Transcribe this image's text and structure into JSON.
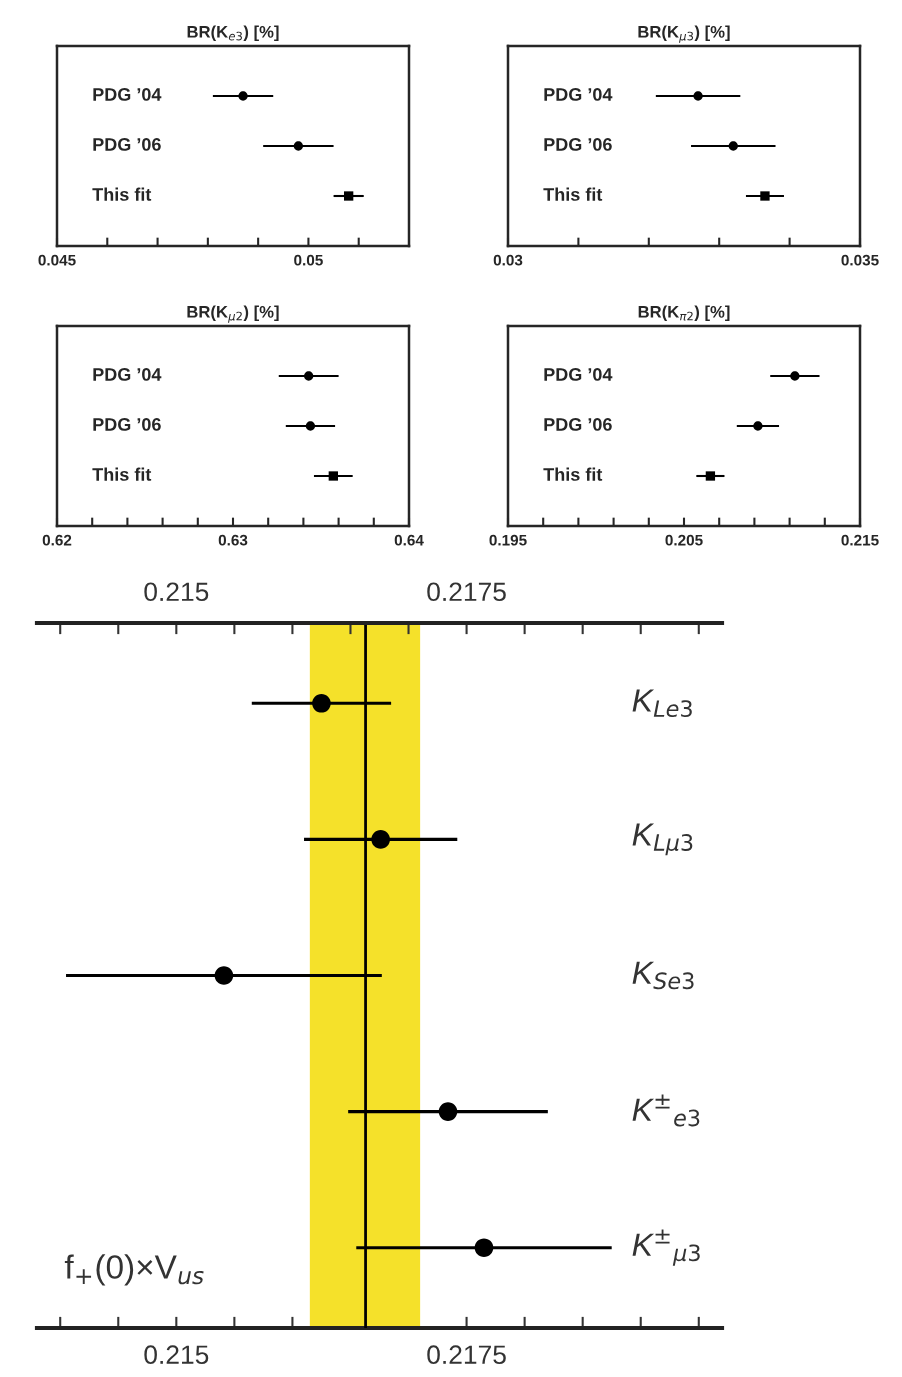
{
  "chart_data": [
    {
      "type": "scatter",
      "title": "BR(K$_{e3}$) [%]",
      "orientation": "horizontal",
      "categories": [
        "PDG ’04",
        "PDG ’06",
        "This fit"
      ],
      "series": [
        {
          "color": "#000000",
          "marker": "circle",
          "values": [
            0.0487,
            0.0498,
            null
          ],
          "errors": [
            0.0006,
            0.0007,
            null
          ]
        },
        {
          "color": "#000000",
          "marker": "square",
          "values": [
            null,
            null,
            0.0508
          ],
          "errors": [
            null,
            null,
            0.0003
          ]
        }
      ],
      "xlim": [
        0.045,
        0.052
      ],
      "xticks": [
        0.045,
        {
          "value": 0.046,
          "label": null
        },
        {
          "value": 0.047,
          "label": null
        },
        {
          "value": 0.048,
          "label": null
        },
        {
          "value": 0.049,
          "label": null
        },
        0.05,
        {
          "value": 0.051,
          "label": null
        }
      ]
    },
    {
      "type": "scatter",
      "title": "BR(K$_{μ3}$) [%]",
      "orientation": "horizontal",
      "categories": [
        "PDG ’04",
        "PDG ’06",
        "This fit"
      ],
      "series": [
        {
          "color": "#000000",
          "marker": "circle",
          "values": [
            0.0327,
            0.0332,
            null
          ],
          "errors": [
            0.0006,
            0.0006,
            null
          ]
        },
        {
          "color": "#000000",
          "marker": "square",
          "values": [
            null,
            null,
            0.03365
          ],
          "errors": [
            null,
            null,
            0.00027
          ]
        }
      ],
      "xlim": [
        0.03,
        0.035
      ],
      "xticks": [
        0.03,
        {
          "value": 0.031,
          "label": null
        },
        {
          "value": 0.032,
          "label": null
        },
        {
          "value": 0.033,
          "label": null
        },
        {
          "value": 0.034,
          "label": null
        },
        0.035
      ]
    },
    {
      "type": "scatter",
      "title": "BR(K$_{μ2}$) [%]",
      "orientation": "horizontal",
      "categories": [
        "PDG ’04",
        "PDG ’06",
        "This fit"
      ],
      "series": [
        {
          "color": "#000000",
          "marker": "circle",
          "values": [
            0.6343,
            0.6344,
            null
          ],
          "errors": [
            0.0017,
            0.0014,
            null
          ]
        },
        {
          "color": "#000000",
          "marker": "square",
          "values": [
            null,
            null,
            0.6357
          ],
          "errors": [
            null,
            null,
            0.0011
          ]
        }
      ],
      "xlim": [
        0.62,
        0.64
      ],
      "xticks": [
        0.62,
        {
          "value": 0.622,
          "label": null
        },
        {
          "value": 0.624,
          "label": null
        },
        {
          "value": 0.626,
          "label": null
        },
        {
          "value": 0.628,
          "label": null
        },
        0.63,
        {
          "value": 0.632,
          "label": null
        },
        {
          "value": 0.634,
          "label": null
        },
        {
          "value": 0.636,
          "label": null
        },
        {
          "value": 0.638,
          "label": null
        },
        0.64
      ]
    },
    {
      "type": "scatter",
      "title": "BR(K$_{π2}$) [%]",
      "orientation": "horizontal",
      "categories": [
        "PDG ’04",
        "PDG ’06",
        "This fit"
      ],
      "series": [
        {
          "color": "#000000",
          "marker": "circle",
          "values": [
            0.2113,
            0.2092,
            null
          ],
          "errors": [
            0.0014,
            0.0012,
            null
          ]
        },
        {
          "color": "#000000",
          "marker": "square",
          "values": [
            null,
            null,
            0.2065
          ],
          "errors": [
            null,
            null,
            0.0008
          ]
        }
      ],
      "xlim": [
        0.195,
        0.215
      ],
      "xticks": [
        0.195,
        {
          "value": 0.197,
          "label": null
        },
        {
          "value": 0.199,
          "label": null
        },
        {
          "value": 0.201,
          "label": null
        },
        {
          "value": 0.203,
          "label": null
        },
        0.205,
        {
          "value": 0.207,
          "label": null
        },
        {
          "value": 0.209,
          "label": null
        },
        {
          "value": 0.211,
          "label": null
        },
        {
          "value": 0.213,
          "label": null
        },
        0.215
      ]
    },
    {
      "type": "scatter",
      "orientation": "horizontal",
      "categories": [
        "K$_{Le3}$",
        "K$_{Lμ3}$",
        "K$_{Se3}$",
        "K$^{±}$$_{e3}$",
        "K$^{±}$$_{μ3}$"
      ],
      "series": [
        {
          "color": "#000000",
          "marker": "circle",
          "values": [
            0.21625,
            0.21676,
            0.21541,
            0.21734,
            0.21765
          ],
          "errors": [
            0.0006,
            0.00066,
            0.00136,
            0.00086,
            0.0011
          ]
        }
      ],
      "xlim": [
        0.2138,
        0.2197
      ],
      "xticks": [
        {
          "value": 0.214,
          "label": null
        },
        {
          "value": 0.2145,
          "label": null
        },
        0.215,
        {
          "value": 0.2155,
          "label": null
        },
        {
          "value": 0.216,
          "label": null
        },
        {
          "value": 0.2165,
          "label": null
        },
        {
          "value": 0.217,
          "label": null
        },
        0.2175,
        {
          "value": 0.218,
          "label": null
        },
        {
          "value": 0.2185,
          "label": null
        },
        {
          "value": 0.219,
          "label": null
        },
        {
          "value": 0.2195,
          "label": null
        }
      ],
      "x2lim": [
        0.2138,
        0.2197
      ],
      "x2ticks": [
        {
          "value": 0.214,
          "label": null
        },
        {
          "value": 0.2145,
          "label": null
        },
        0.215,
        {
          "value": 0.2155,
          "label": null
        },
        {
          "value": 0.216,
          "label": null
        },
        {
          "value": 0.2165,
          "label": null
        },
        {
          "value": 0.217,
          "label": null
        },
        0.2175,
        {
          "value": 0.218,
          "label": null
        },
        {
          "value": 0.2185,
          "label": null
        },
        {
          "value": 0.219,
          "label": null
        },
        {
          "value": 0.2195,
          "label": null
        }
      ],
      "bands": [
        {
          "axis": "x",
          "from": 0.21615,
          "to": 0.2171,
          "color": "#f5e12a"
        }
      ],
      "ref_lines": [
        {
          "axis": "x",
          "value": 0.21663,
          "color": "#000000"
        }
      ],
      "annotations": [
        "f$_{+}$(0)×V$_{us}$"
      ]
    }
  ]
}
